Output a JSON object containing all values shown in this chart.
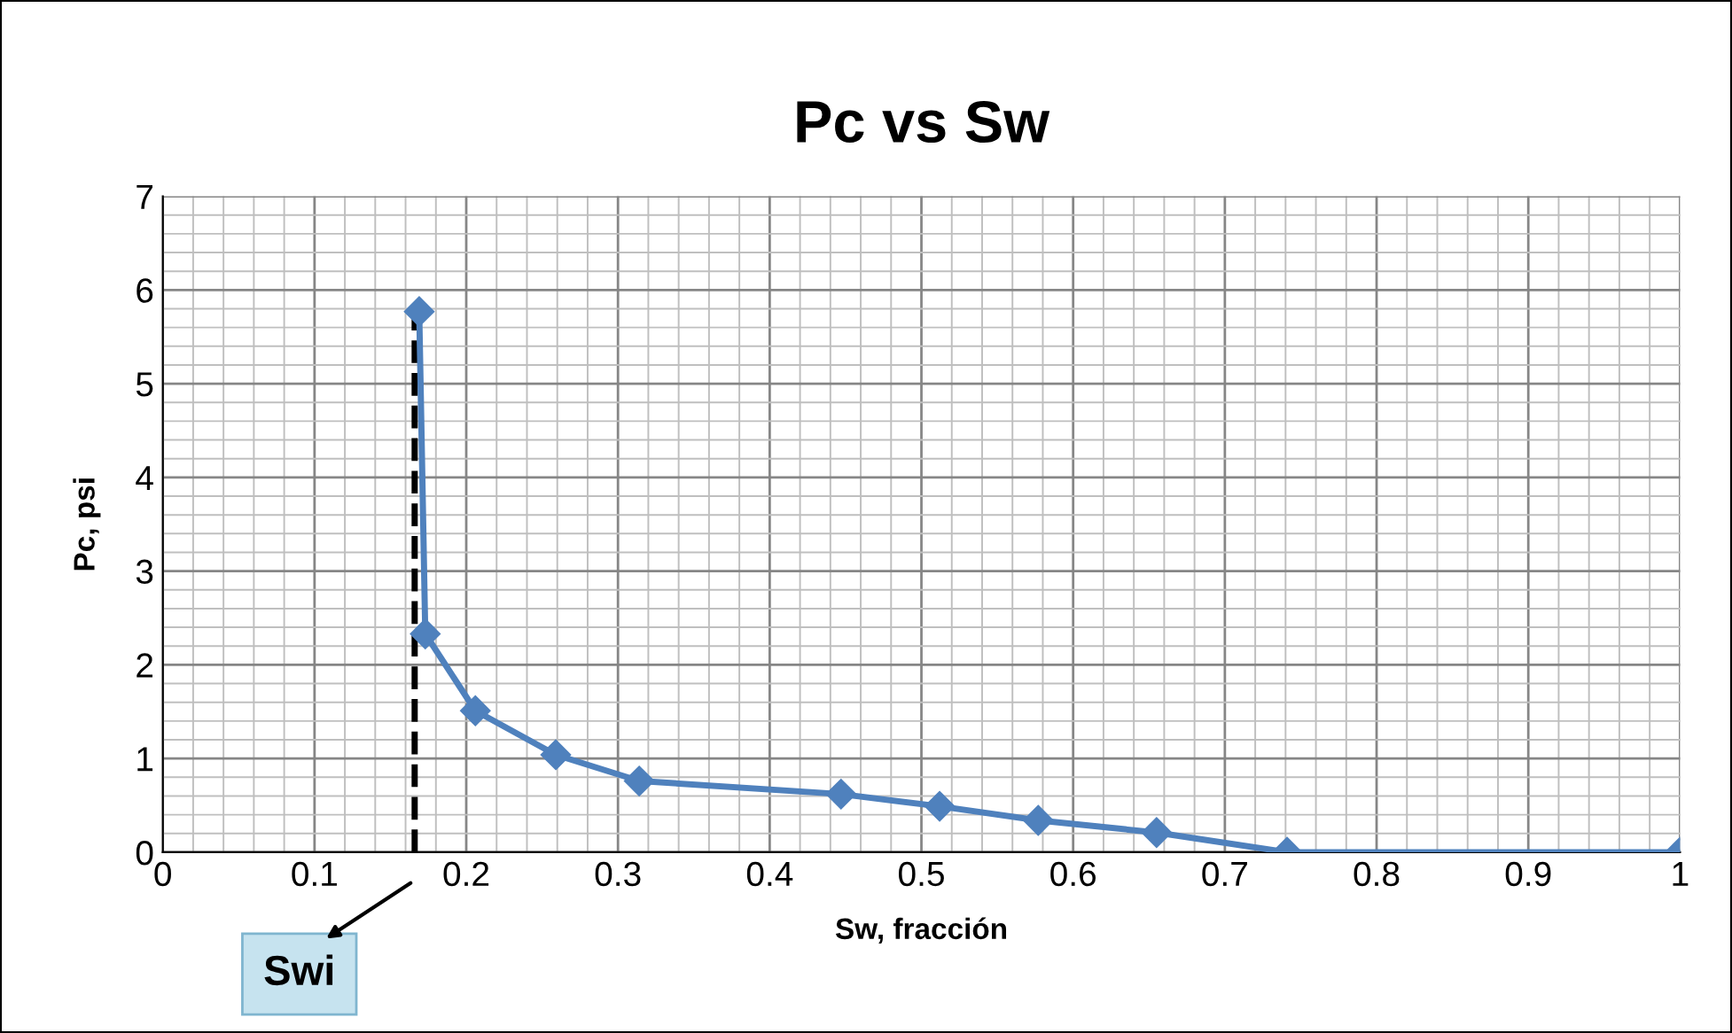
{
  "chart_data": {
    "type": "line",
    "title": "Pc vs Sw",
    "xlabel": "Sw, fracción",
    "ylabel": "Pc, psi",
    "x": [
      0.169,
      0.173,
      0.206,
      0.259,
      0.314,
      0.447,
      0.512,
      0.577,
      0.655,
      0.741,
      1.0
    ],
    "series": [
      {
        "color": "#4f81bd",
        "values": [
          5.77,
          2.33,
          1.51,
          1.04,
          0.76,
          0.62,
          0.49,
          0.34,
          0.21,
          0.0,
          0.0
        ]
      }
    ],
    "xlim": [
      0,
      1
    ],
    "xticks": [
      0,
      0.1,
      0.2,
      0.3,
      0.4,
      0.5,
      0.6,
      0.7,
      0.8,
      0.9,
      1
    ],
    "ylim": [
      0,
      7
    ],
    "yticks": [
      0,
      1,
      2,
      3,
      4,
      5,
      6,
      7
    ],
    "ref_lines": [
      {
        "axis": "x",
        "value": 0.166,
        "label": "Swi",
        "color": "#000000",
        "line_style": "dashed"
      }
    ],
    "grid": true,
    "marker": "diamond",
    "line_style": "solid"
  }
}
